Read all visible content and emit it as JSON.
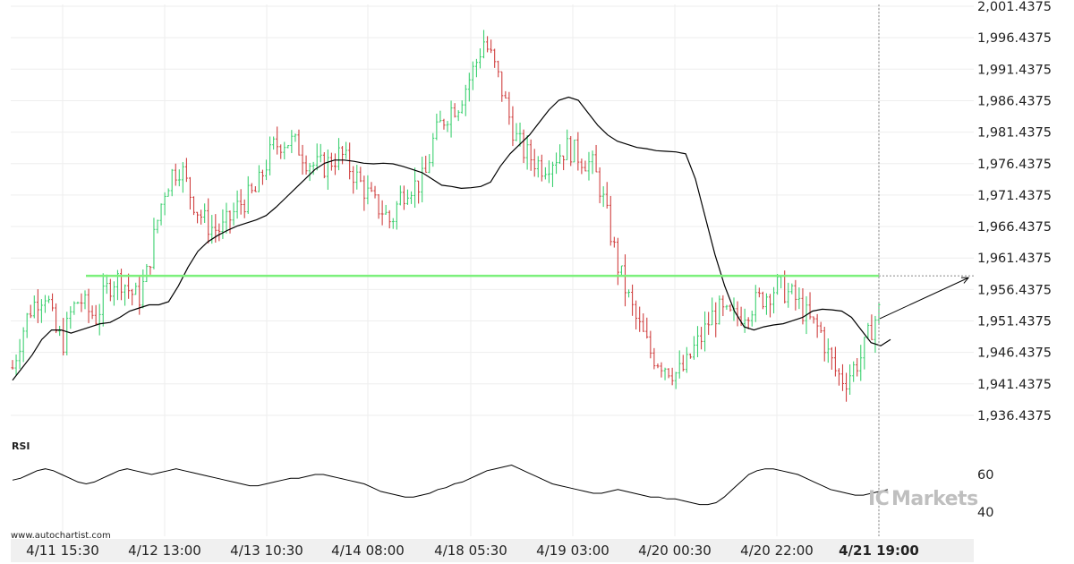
{
  "chart_data": {
    "type": "candlestick",
    "instrument_note": "",
    "price_axis": {
      "ticks": [
        "2,001.4375",
        "1,996.4375",
        "1,991.4375",
        "1,986.4375",
        "1,981.4375",
        "1,976.4375",
        "1,971.4375",
        "1,966.4375",
        "1,961.4375",
        "1,956.4375",
        "1,951.4375",
        "1,946.4375",
        "1,941.4375",
        "1,936.4375"
      ],
      "range": [
        1935.0,
        2001.4375
      ]
    },
    "time_axis": {
      "ticks": [
        "4/11 15:30",
        "4/12 13:00",
        "4/13 10:30",
        "4/14 08:00",
        "4/18 05:30",
        "4/19 03:00",
        "4/20 00:30",
        "4/20 22:00",
        "4/21 19:00"
      ],
      "highlighted": "4/21 19:00"
    },
    "resistance_level": 1958.6,
    "projection": {
      "from": 1951.8,
      "to": 1958.3
    },
    "current_marker_time": "4/21 19:00",
    "price_path": [
      1944,
      1949,
      1953,
      1955,
      1956,
      1950,
      1948,
      1953,
      1955,
      1953,
      1952,
      1956,
      1958,
      1958,
      1956,
      1955,
      1959,
      1966,
      1972,
      1975,
      1976,
      1972,
      1969,
      1967,
      1966,
      1966,
      1968,
      1970,
      1971,
      1972,
      1976,
      1979,
      1980,
      1980,
      1979,
      1977,
      1976,
      1976,
      1977,
      1978,
      1976,
      1974,
      1972,
      1970,
      1969,
      1967,
      1971,
      1973,
      1973,
      1974,
      1980,
      1983,
      1985,
      1986,
      1989,
      1992,
      1996,
      1993,
      1989,
      1984,
      1980,
      1978,
      1977,
      1976,
      1977,
      1978,
      1979,
      1978,
      1977,
      1976,
      1972,
      1966,
      1960,
      1956,
      1952,
      1949,
      1946,
      1945,
      1944,
      1943,
      1944,
      1947,
      1949,
      1952,
      1953,
      1952,
      1952,
      1953,
      1954,
      1955,
      1956,
      1957,
      1956,
      1955,
      1953,
      1951,
      1950,
      1946,
      1943,
      1942,
      1944,
      1946,
      1950,
      1953
    ],
    "ma_path": [
      1942,
      1944,
      1946,
      1948.5,
      1950,
      1950,
      1949.5,
      1950,
      1950.5,
      1951,
      1951.2,
      1952,
      1953,
      1953.5,
      1954,
      1954,
      1954.5,
      1957,
      1960,
      1962.5,
      1964,
      1965,
      1965.8,
      1966.5,
      1967,
      1967.5,
      1968.2,
      1969.5,
      1971,
      1972.5,
      1974,
      1975.5,
      1976.5,
      1977,
      1977,
      1976.8,
      1976.5,
      1976.4,
      1976.5,
      1976.4,
      1976,
      1975.5,
      1975,
      1974,
      1973,
      1972.8,
      1972.5,
      1972.6,
      1972.8,
      1973.5,
      1976,
      1978,
      1979.5,
      1981,
      1983,
      1985,
      1986.5,
      1987,
      1986.5,
      1984.5,
      1982.5,
      1981,
      1980,
      1979.5,
      1979,
      1978.8,
      1978.5,
      1978.4,
      1978.3,
      1978,
      1974,
      1968,
      1962,
      1957,
      1953,
      1950.5,
      1950,
      1950.5,
      1950.8,
      1951,
      1951.5,
      1952,
      1953,
      1953.3,
      1953.2,
      1953,
      1952,
      1950,
      1948,
      1947.5,
      1948.5
    ],
    "rsi": {
      "label": "RSI",
      "ticks": [
        "60",
        "40"
      ],
      "values": [
        57,
        58,
        60,
        62,
        63,
        62,
        60,
        58,
        56,
        55,
        56,
        58,
        60,
        62,
        63,
        62,
        61,
        60,
        61,
        62,
        63,
        62,
        61,
        60,
        59,
        58,
        57,
        56,
        55,
        54,
        54,
        55,
        56,
        57,
        58,
        58,
        59,
        60,
        60,
        59,
        58,
        57,
        56,
        55,
        53,
        51,
        50,
        49,
        48,
        48,
        49,
        50,
        52,
        53,
        55,
        56,
        58,
        60,
        62,
        63,
        64,
        65,
        63,
        61,
        59,
        57,
        55,
        54,
        53,
        52,
        51,
        50,
        50,
        51,
        52,
        51,
        50,
        49,
        48,
        48,
        47,
        47,
        46,
        45,
        44,
        44,
        45,
        48,
        52,
        56,
        60,
        62,
        63,
        63,
        62,
        61,
        60,
        58,
        56,
        54,
        52,
        51,
        50,
        49,
        49,
        50,
        51,
        52
      ],
      "range": [
        30,
        70
      ]
    }
  },
  "footer": {
    "source": "www.autochartist.com",
    "watermark_prefix": "IC",
    "watermark": "Markets"
  },
  "colors": {
    "up": "#3cd070",
    "down": "#d04040",
    "resistance": "#7cf07c",
    "line": "#000000",
    "grid": "#eeeeee"
  }
}
